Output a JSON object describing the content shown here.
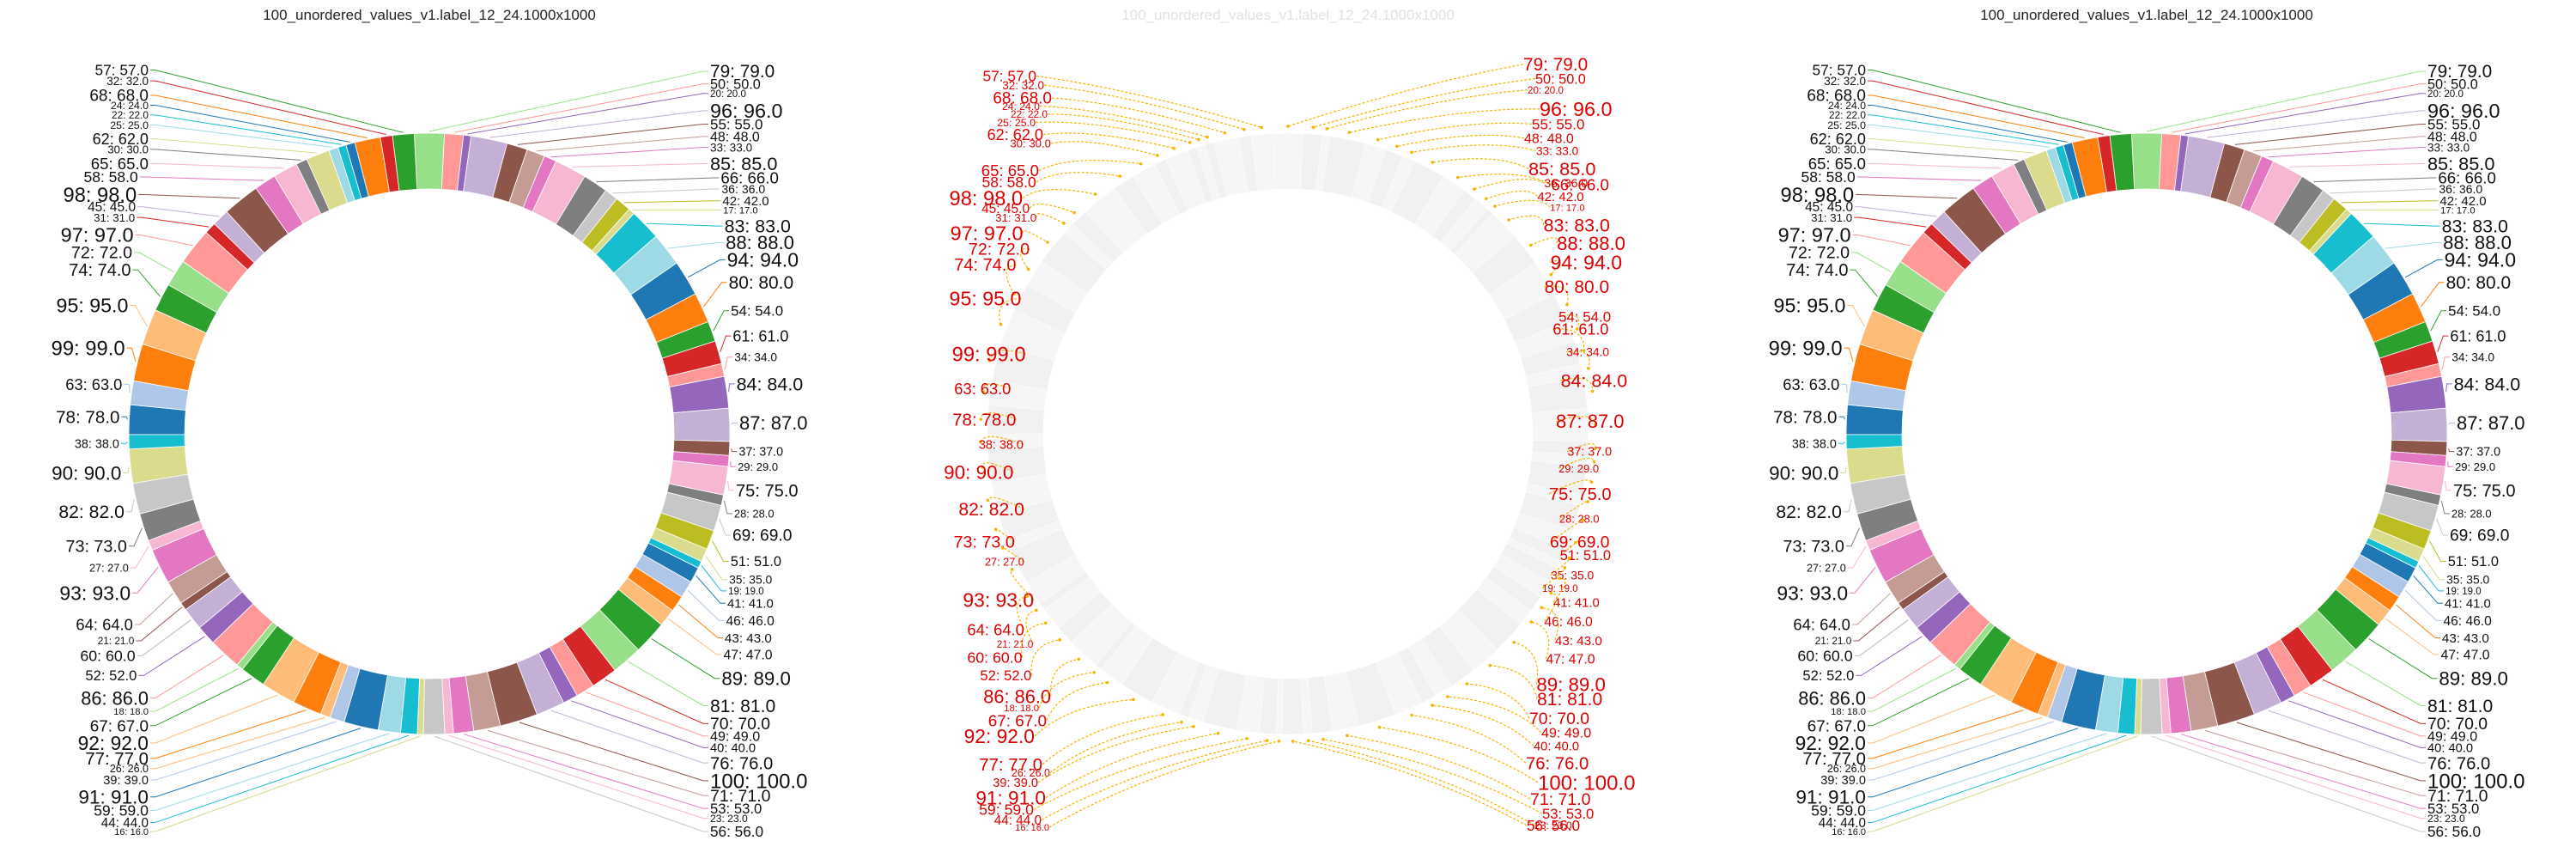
{
  "chart_data": [
    {
      "type": "pie",
      "variant": "donut",
      "title": "100_unordered_values_v1.label_12_24.1000x1000",
      "label_format": "value: value.0",
      "label_style": "external labels with leader lines, font size grows with value",
      "legend": "none",
      "grid": false,
      "categories": [
        "79",
        "50",
        "20",
        "96",
        "55",
        "48",
        "33",
        "85",
        "66",
        "36",
        "42",
        "17",
        "83",
        "88",
        "94",
        "80",
        "54",
        "61",
        "34",
        "84",
        "87",
        "37",
        "29",
        "75",
        "28",
        "69",
        "51",
        "35",
        "19",
        "41",
        "46",
        "43",
        "47",
        "89",
        "81",
        "70",
        "49",
        "40",
        "76",
        "100",
        "71",
        "53",
        "23",
        "56",
        "16",
        "44",
        "59",
        "91",
        "39",
        "26",
        "77",
        "92",
        "67",
        "18",
        "86",
        "52",
        "60",
        "21",
        "64",
        "93",
        "27",
        "73",
        "82",
        "90",
        "38",
        "78",
        "63",
        "99",
        "95",
        "74",
        "72",
        "97",
        "31",
        "45",
        "98",
        "58",
        "65",
        "30",
        "62",
        "25",
        "22",
        "24",
        "68",
        "32",
        "57"
      ],
      "values": [
        79,
        50,
        20,
        96,
        55,
        48,
        33,
        85,
        66,
        36,
        42,
        17,
        83,
        88,
        94,
        80,
        54,
        61,
        34,
        84,
        87,
        37,
        29,
        75,
        28,
        69,
        51,
        35,
        19,
        41,
        46,
        43,
        47,
        89,
        81,
        70,
        49,
        40,
        76,
        100,
        71,
        53,
        23,
        56,
        16,
        44,
        59,
        91,
        39,
        26,
        77,
        92,
        67,
        18,
        86,
        52,
        60,
        21,
        64,
        93,
        27,
        73,
        82,
        90,
        38,
        78,
        63,
        99,
        95,
        74,
        72,
        97,
        31,
        45,
        98,
        58,
        65,
        30,
        62,
        25,
        22,
        24,
        68,
        32,
        57
      ],
      "colors": [
        "#98df8a",
        "#ff9896",
        "#9467bd",
        "#c5b0d5",
        "#8c564b",
        "#c49c94",
        "#e377c2",
        "#f7b6d2",
        "#7f7f7f",
        "#c7c7c7",
        "#bcbd22",
        "#dbdb8d",
        "#17becf",
        "#9edae5",
        "#1f77b4",
        "#ff7f0e",
        "#2ca02c",
        "#d62728",
        "#ff9896",
        "#9467bd",
        "#c5b0d5",
        "#8c564b",
        "#e377c2",
        "#f7b6d2",
        "#7f7f7f",
        "#c7c7c7",
        "#bcbd22",
        "#dbdb8d",
        "#17becf",
        "#1f77b4",
        "#aec7e8",
        "#ff7f0e",
        "#ffbb78",
        "#2ca02c",
        "#98df8a",
        "#d62728",
        "#ff9896",
        "#9467bd",
        "#c5b0d5",
        "#8c564b",
        "#c49c94",
        "#e377c2",
        "#f7b6d2",
        "#c7c7c7",
        "#dbdb8d",
        "#17becf",
        "#9edae5",
        "#1f77b4",
        "#aec7e8",
        "#ffbb78",
        "#ff7f0e",
        "#ffbb78",
        "#2ca02c",
        "#98df8a",
        "#ff9896",
        "#9467bd",
        "#c5b0d5",
        "#8c564b",
        "#c49c94",
        "#e377c2",
        "#f7b6d2",
        "#7f7f7f",
        "#c7c7c7",
        "#dbdb8d",
        "#17becf",
        "#1f77b4",
        "#aec7e8",
        "#ff7f0e",
        "#ffbb78",
        "#2ca02c",
        "#98df8a",
        "#ff9896",
        "#d62728",
        "#c5b0d5",
        "#8c564b",
        "#e377c2",
        "#f7b6d2",
        "#7f7f7f",
        "#dbdb8d",
        "#9edae5",
        "#17becf",
        "#1f77b4",
        "#ff7f0e",
        "#d62728",
        "#2ca02c"
      ]
    },
    {
      "type": "pie",
      "variant": "donut",
      "title": "100_unordered_values_v1.label_12_24.1000x1000",
      "label_format": "value: value.0",
      "label_style": "faded wedges, overlapping labels in red with dashed orange leader arrows",
      "legend": "none",
      "grid": false,
      "same_values_as": 0,
      "highlight_color": "#dd0000",
      "arrow_color": "#f5b400"
    },
    {
      "type": "pie",
      "variant": "donut",
      "title": "100_unordered_values_v1.label_12_24.1000x1000",
      "label_format": "value: value.0",
      "label_style": "external labels with leader lines, font size grows with value",
      "legend": "none",
      "grid": false,
      "same_values_as": 0
    }
  ]
}
